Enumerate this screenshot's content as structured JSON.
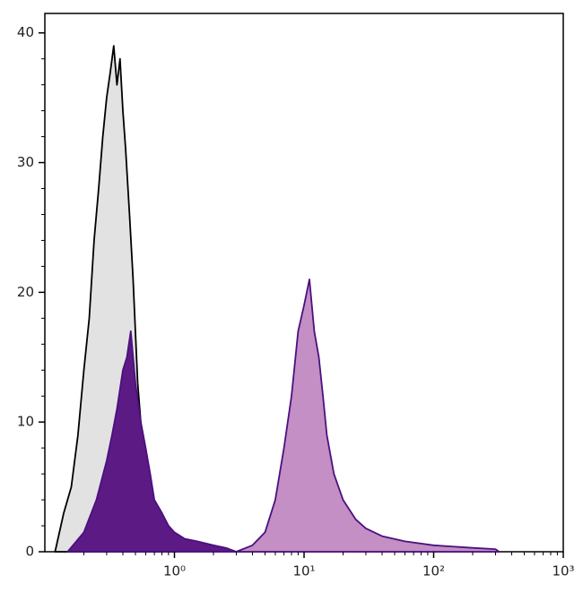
{
  "chart_data": {
    "type": "histogram-overlay",
    "xscale": "log",
    "xlim": [
      0.1,
      1000
    ],
    "ylim": [
      0,
      41.5
    ],
    "xticks": [
      {
        "value": 1,
        "label": "10⁰"
      },
      {
        "value": 10,
        "label": "10¹"
      },
      {
        "value": 100,
        "label": "10²"
      },
      {
        "value": 1000,
        "label": "10³"
      }
    ],
    "xminorticks": [
      0.2,
      0.3,
      0.4,
      0.5,
      0.6,
      0.7,
      0.8,
      0.9,
      2,
      3,
      4,
      5,
      6,
      7,
      8,
      9,
      20,
      30,
      40,
      50,
      60,
      70,
      80,
      90,
      200,
      300,
      400,
      500,
      600,
      700,
      800,
      900
    ],
    "yticks": [
      0,
      10,
      20,
      30,
      40
    ],
    "yminorticks": [
      2,
      4,
      6,
      8,
      12,
      14,
      16,
      18,
      22,
      24,
      26,
      28,
      32,
      34,
      36,
      38
    ],
    "series": [
      {
        "color": "#000000",
        "fill": "#e2e2e2",
        "x": [
          0.12,
          0.14,
          0.16,
          0.18,
          0.2,
          0.22,
          0.24,
          0.26,
          0.28,
          0.3,
          0.32,
          0.34,
          0.36,
          0.38,
          0.4,
          0.42,
          0.45,
          0.48,
          0.52,
          0.56,
          0.6,
          0.65,
          0.7,
          0.8,
          0.9,
          1.0
        ],
        "values": [
          0,
          3,
          5,
          9,
          14,
          18,
          24,
          28,
          32,
          35,
          37,
          39,
          36,
          38,
          34,
          31,
          26,
          21,
          13,
          9,
          6,
          4,
          3,
          1.5,
          0.5,
          0
        ]
      },
      {
        "color": "#4b1080",
        "fill": "#c38fc4",
        "x": [
          3,
          4,
          5,
          6,
          7,
          8,
          9,
          10,
          11,
          12,
          13,
          14,
          15,
          17,
          20,
          25,
          30,
          40,
          60,
          100,
          200,
          300,
          320
        ],
        "values": [
          0,
          0.5,
          1.5,
          4,
          8,
          12,
          17,
          19,
          21,
          17,
          15,
          12,
          9,
          6,
          4,
          2.5,
          1.8,
          1.2,
          0.8,
          0.5,
          0.3,
          0.2,
          0
        ]
      },
      {
        "color": "#4b1080",
        "fill": "#5c1a85",
        "x": [
          0.15,
          0.2,
          0.25,
          0.3,
          0.33,
          0.36,
          0.4,
          0.43,
          0.46,
          0.5,
          0.55,
          0.6,
          0.65,
          0.7,
          0.8,
          0.9,
          1.0,
          1.2,
          1.5,
          2,
          2.5,
          3
        ],
        "values": [
          0,
          1.5,
          4,
          7,
          9,
          11,
          14,
          15,
          17,
          13,
          10,
          8,
          6,
          4,
          3,
          2,
          1.5,
          1,
          0.8,
          0.5,
          0.3,
          0
        ]
      }
    ]
  }
}
